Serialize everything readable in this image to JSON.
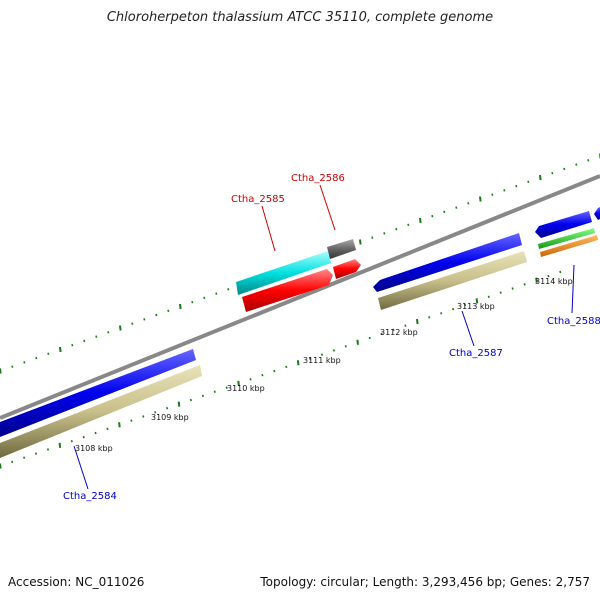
{
  "title": "Chloroherpeton thalassium ATCC 35110, complete genome",
  "accession": "Accession: NC_011026",
  "topology": "Topology: circular; Length: 3,293,456 bp; Genes: 2,757",
  "scale_labels": [
    "3108 kbp",
    "3109 kbp",
    "3110 kbp",
    "3111 kbp",
    "3112 kbp",
    "3113 kbp",
    "3114 kbp"
  ],
  "genes": [
    {
      "name": "Ctha_2584",
      "strand": "minus",
      "color": "#0000ff"
    },
    {
      "name": "Ctha_2585",
      "strand": "plus",
      "color": "#00ffff"
    },
    {
      "name": "Ctha_2586",
      "strand": "plus",
      "color": "#555555"
    },
    {
      "name": "Ctha_2587",
      "strand": "minus",
      "color": "#0000ff"
    },
    {
      "name": "Ctha_2588",
      "strand": "minus",
      "color": "#0000ff"
    }
  ],
  "colors": {
    "backbone": "#888888",
    "tick": "#1a7a1a",
    "cds": "#ff0000",
    "gene_minus": "#c8bf8a",
    "green": "#22cc22",
    "orange": "#ff8800",
    "label_plus": "#cc0000",
    "label_minus": "#0000cc"
  }
}
